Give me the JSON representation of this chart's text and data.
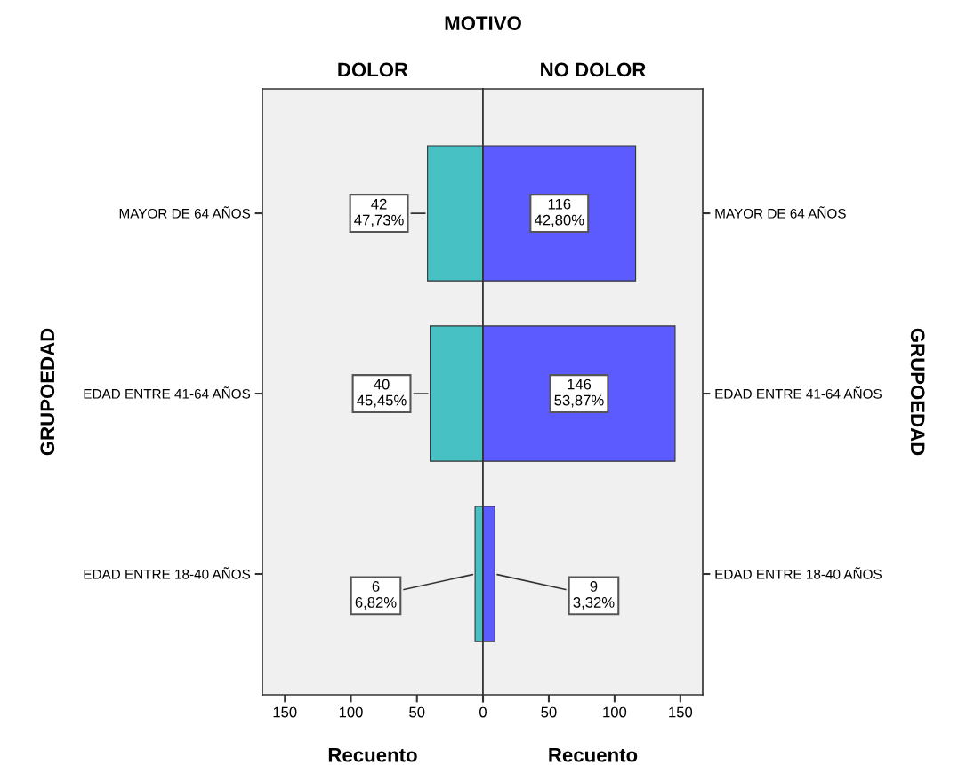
{
  "chart_data": [
    {
      "type": "bar",
      "orientation": "horizontal",
      "title": "DOLOR",
      "annotations": [
        "MOTIVO"
      ],
      "xlabel": "Recuento",
      "ylabel": "GRUPOEDAD",
      "categories": [
        "MAYOR DE 64 AÑOS",
        "EDAD ENTRE 41-64 AÑOS",
        "EDAD ENTRE 18-40 AÑOS"
      ],
      "values": [
        42,
        40,
        6
      ],
      "color": "#48c1c4",
      "value_labels": [
        "42\n47,73%",
        "40\n45,45%",
        "6\n6,82%"
      ],
      "xlim": [
        167,
        0
      ],
      "xticks": [
        150,
        100,
        50,
        0
      ]
    },
    {
      "type": "bar",
      "orientation": "horizontal",
      "title": "NO DOLOR",
      "xlabel": "Recuento",
      "ylabel": "GRUPOEDAD",
      "categories": [
        "MAYOR DE 64 AÑOS",
        "EDAD ENTRE 41-64 AÑOS",
        "EDAD ENTRE 18-40 AÑOS"
      ],
      "values": [
        116,
        146,
        9
      ],
      "color": "#5b5bff",
      "value_labels": [
        "116\n42,80%",
        "146\n53,87%",
        "9\n3,32%"
      ],
      "xlim": [
        0,
        167
      ],
      "xticks": [
        {
          "value": 0,
          "label": null
        },
        50,
        100,
        150
      ]
    }
  ]
}
